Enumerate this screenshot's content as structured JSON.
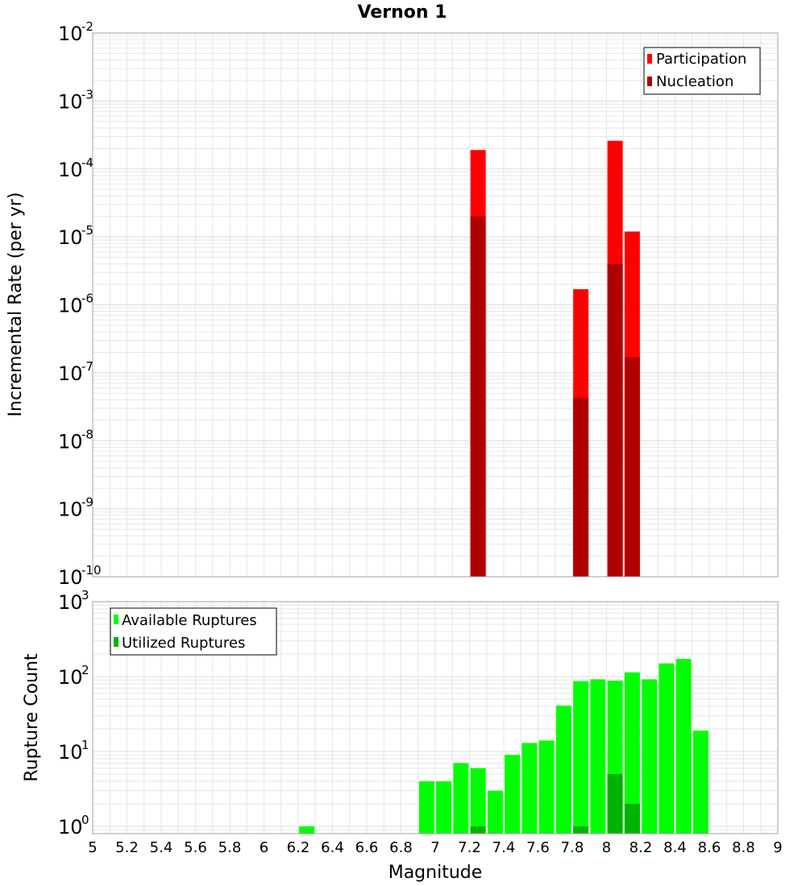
{
  "title": "Vernon 1",
  "colors": {
    "participation": "#ff0000",
    "nucleation": "#b00000",
    "available": "#00ff00",
    "utilized": "#00b300",
    "grid": "#e6e6e6",
    "frame": "#a0a0a0"
  },
  "chart_data": [
    {
      "type": "bar",
      "name": "rates",
      "title": "Vernon 1",
      "xlabel": "Magnitude",
      "ylabel": "Incremental Rate (per yr)",
      "yscale": "log",
      "xlim": [
        5,
        9
      ],
      "ylim": [
        1e-10,
        0.01
      ],
      "y_ticks": [
        {
          "base": "10",
          "exp": "-2",
          "value": 0.01
        },
        {
          "base": "10",
          "exp": "-3",
          "value": 0.001
        },
        {
          "base": "10",
          "exp": "-4",
          "value": 0.0001
        },
        {
          "base": "10",
          "exp": "-5",
          "value": 1e-05
        },
        {
          "base": "10",
          "exp": "-6",
          "value": 1e-06
        },
        {
          "base": "10",
          "exp": "-7",
          "value": 1e-07
        },
        {
          "base": "10",
          "exp": "-8",
          "value": 1e-08
        },
        {
          "base": "10",
          "exp": "-9",
          "value": 1e-09
        },
        {
          "base": "10",
          "exp": "-10",
          "value": 1e-10
        }
      ],
      "legend": {
        "position": "top-right",
        "entries": [
          "Participation",
          "Nucleation"
        ]
      },
      "series": [
        {
          "name": "Participation",
          "points": [
            {
              "x": 7.25,
              "y": 0.00019
            },
            {
              "x": 7.85,
              "y": 1.7e-06
            },
            {
              "x": 8.05,
              "y": 0.00026
            },
            {
              "x": 8.15,
              "y": 1.2e-05
            }
          ]
        },
        {
          "name": "Nucleation",
          "points": [
            {
              "x": 7.25,
              "y": 2e-05
            },
            {
              "x": 7.85,
              "y": 4.3e-08
            },
            {
              "x": 8.05,
              "y": 4e-06
            },
            {
              "x": 8.15,
              "y": 1.7e-07
            }
          ]
        }
      ]
    },
    {
      "type": "bar",
      "name": "counts",
      "xlabel": "Magnitude",
      "ylabel": "Rupture Count",
      "yscale": "log",
      "xlim": [
        5,
        9
      ],
      "ylim": [
        0.8,
        1000
      ],
      "x_ticks": [
        "5",
        "5.2",
        "5.4",
        "5.6",
        "5.8",
        "6",
        "6.2",
        "6.4",
        "6.6",
        "6.8",
        "7",
        "7.2",
        "7.4",
        "7.6",
        "7.8",
        "8",
        "8.2",
        "8.4",
        "8.6",
        "8.8",
        "9"
      ],
      "y_ticks": [
        {
          "base": "10",
          "exp": "3",
          "value": 1000
        },
        {
          "base": "10",
          "exp": "2",
          "value": 100
        },
        {
          "base": "10",
          "exp": "1",
          "value": 10
        },
        {
          "base": "10",
          "exp": "0",
          "value": 1
        }
      ],
      "legend": {
        "position": "top-left",
        "entries": [
          "Available Ruptures",
          "Utilized Ruptures"
        ]
      },
      "series": [
        {
          "name": "Available Ruptures",
          "points": [
            {
              "x": 6.25,
              "y": 1
            },
            {
              "x": 6.95,
              "y": 4
            },
            {
              "x": 7.05,
              "y": 4
            },
            {
              "x": 7.15,
              "y": 7
            },
            {
              "x": 7.25,
              "y": 6
            },
            {
              "x": 7.35,
              "y": 3
            },
            {
              "x": 7.45,
              "y": 9
            },
            {
              "x": 7.55,
              "y": 13
            },
            {
              "x": 7.65,
              "y": 14
            },
            {
              "x": 7.75,
              "y": 41
            },
            {
              "x": 7.85,
              "y": 87
            },
            {
              "x": 7.95,
              "y": 92
            },
            {
              "x": 8.05,
              "y": 88
            },
            {
              "x": 8.15,
              "y": 114
            },
            {
              "x": 8.25,
              "y": 92
            },
            {
              "x": 8.35,
              "y": 150
            },
            {
              "x": 8.45,
              "y": 172
            },
            {
              "x": 8.55,
              "y": 19
            }
          ]
        },
        {
          "name": "Utilized Ruptures",
          "points": [
            {
              "x": 7.25,
              "y": 1
            },
            {
              "x": 7.85,
              "y": 1
            },
            {
              "x": 8.05,
              "y": 5
            },
            {
              "x": 8.15,
              "y": 2
            }
          ]
        }
      ]
    }
  ]
}
